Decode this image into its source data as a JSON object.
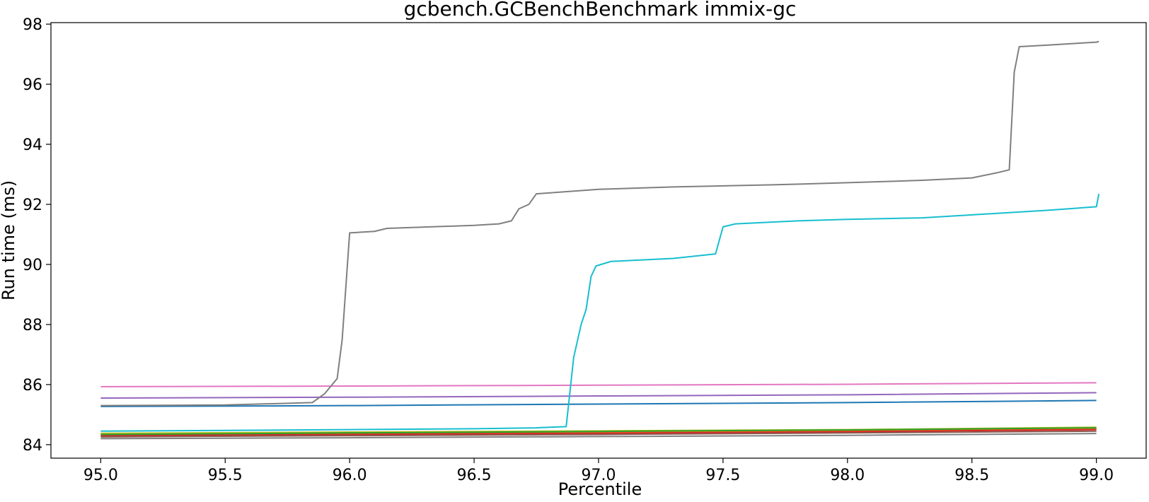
{
  "chart_data": {
    "type": "line",
    "title": "gcbench.GCBenchBenchmark immix-gc",
    "xlabel": "Percentile",
    "ylabel": "Run time (ms)",
    "xlim": [
      94.8,
      99.2
    ],
    "ylim": [
      83.55,
      98.05
    ],
    "xticks": [
      "95.0",
      "95.5",
      "96.0",
      "96.5",
      "97.0",
      "97.5",
      "98.0",
      "98.5",
      "99.0"
    ],
    "yticks": [
      "84",
      "86",
      "88",
      "90",
      "92",
      "94",
      "96",
      "98"
    ],
    "grid": false,
    "legend": "none",
    "series": [
      {
        "color": "#bcbd22",
        "points": [
          [
            95.0,
            84.38
          ],
          [
            96.0,
            84.42
          ],
          [
            97.0,
            84.46
          ],
          [
            98.0,
            84.5
          ],
          [
            99.0,
            84.58
          ]
        ]
      },
      {
        "color": "#ff7f0e",
        "points": [
          [
            95.0,
            84.33
          ],
          [
            96.0,
            84.37
          ],
          [
            97.0,
            84.41
          ],
          [
            98.0,
            84.46
          ],
          [
            99.0,
            84.53
          ]
        ]
      },
      {
        "color": "#d62728",
        "points": [
          [
            95.0,
            84.3
          ],
          [
            96.0,
            84.34
          ],
          [
            97.0,
            84.38
          ],
          [
            98.0,
            84.43
          ],
          [
            99.0,
            84.5
          ]
        ]
      },
      {
        "color": "#2ca02c",
        "points": [
          [
            95.0,
            84.34
          ],
          [
            96.0,
            84.39
          ],
          [
            97.0,
            84.44
          ],
          [
            98.0,
            84.49
          ],
          [
            99.0,
            84.56
          ]
        ]
      },
      {
        "color": "#8c564b",
        "points": [
          [
            95.0,
            84.26
          ],
          [
            96.0,
            84.3
          ],
          [
            97.0,
            84.34
          ],
          [
            98.0,
            84.39
          ],
          [
            99.0,
            84.45
          ]
        ]
      },
      {
        "color": "#9467bd",
        "points": [
          [
            95.0,
            85.55
          ],
          [
            96.0,
            85.58
          ],
          [
            97.0,
            85.62
          ],
          [
            98.0,
            85.66
          ],
          [
            99.0,
            85.73
          ]
        ]
      },
      {
        "color": "#1f77b4",
        "points": [
          [
            95.0,
            85.27
          ],
          [
            96.0,
            85.3
          ],
          [
            97.0,
            85.35
          ],
          [
            98.0,
            85.4
          ],
          [
            99.0,
            85.47
          ]
        ]
      },
      {
        "color": "#e377c2",
        "points": [
          [
            95.0,
            85.93
          ],
          [
            96.0,
            85.95
          ],
          [
            97.0,
            85.98
          ],
          [
            98.0,
            86.01
          ],
          [
            99.0,
            86.06
          ]
        ]
      },
      {
        "color": "#7f7f7f",
        "points": [
          [
            95.0,
            84.2
          ],
          [
            96.0,
            84.23
          ],
          [
            97.0,
            84.27
          ],
          [
            98.0,
            84.31
          ],
          [
            99.0,
            84.37
          ]
        ]
      },
      {
        "color": "#17becf",
        "points": [
          [
            95.0,
            84.45
          ],
          [
            96.0,
            84.5
          ],
          [
            96.5,
            84.53
          ],
          [
            96.75,
            84.56
          ],
          [
            96.87,
            84.6
          ],
          [
            96.9,
            86.9
          ],
          [
            96.93,
            88.0
          ],
          [
            96.95,
            88.5
          ],
          [
            96.97,
            89.6
          ],
          [
            96.99,
            89.95
          ],
          [
            97.05,
            90.1
          ],
          [
            97.3,
            90.2
          ],
          [
            97.47,
            90.35
          ],
          [
            97.5,
            91.25
          ],
          [
            97.55,
            91.35
          ],
          [
            97.8,
            91.45
          ],
          [
            98.0,
            91.5
          ],
          [
            98.3,
            91.55
          ],
          [
            98.5,
            91.65
          ],
          [
            98.8,
            91.8
          ],
          [
            99.0,
            91.92
          ],
          [
            99.01,
            92.35
          ]
        ]
      },
      {
        "color": "#7f7f7f",
        "points": [
          [
            95.0,
            85.3
          ],
          [
            95.5,
            85.32
          ],
          [
            95.85,
            85.4
          ],
          [
            95.9,
            85.7
          ],
          [
            95.95,
            86.2
          ],
          [
            95.97,
            87.5
          ],
          [
            96.0,
            91.05
          ],
          [
            96.1,
            91.1
          ],
          [
            96.15,
            91.2
          ],
          [
            96.5,
            91.3
          ],
          [
            96.6,
            91.35
          ],
          [
            96.65,
            91.45
          ],
          [
            96.68,
            91.85
          ],
          [
            96.72,
            92.0
          ],
          [
            96.75,
            92.35
          ],
          [
            97.0,
            92.5
          ],
          [
            97.3,
            92.58
          ],
          [
            97.7,
            92.65
          ],
          [
            98.0,
            92.72
          ],
          [
            98.3,
            92.8
          ],
          [
            98.5,
            92.88
          ],
          [
            98.6,
            93.05
          ],
          [
            98.65,
            93.15
          ],
          [
            98.67,
            96.4
          ],
          [
            98.69,
            97.25
          ],
          [
            98.8,
            97.3
          ],
          [
            99.0,
            97.4
          ],
          [
            99.01,
            97.42
          ]
        ]
      }
    ]
  }
}
